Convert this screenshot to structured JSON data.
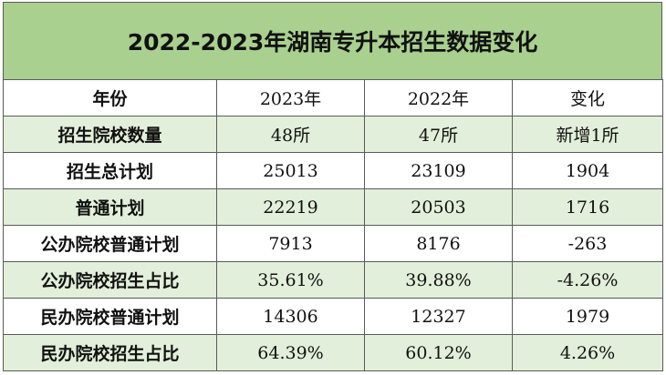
{
  "title": "2022-2023年湖南专升本招生数据变化",
  "header": {
    "label": "年份",
    "col_2023": "2023年",
    "col_2022": "2022年",
    "col_change": "变化"
  },
  "rows": [
    {
      "label": "招生院校数量",
      "v2023": "48所",
      "v2022": "47所",
      "change": "新增1所"
    },
    {
      "label": "招生总计划",
      "v2023": "25013",
      "v2022": "23109",
      "change": "1904"
    },
    {
      "label": "普通计划",
      "v2023": "22219",
      "v2022": "20503",
      "change": "1716"
    },
    {
      "label": "公办院校普通计划",
      "v2023": "7913",
      "v2022": "8176",
      "change": "-263"
    },
    {
      "label": "公办院校招生占比",
      "v2023": "35.61%",
      "v2022": "39.88%",
      "change": "-4.26%"
    },
    {
      "label": "民办院校普通计划",
      "v2023": "14306",
      "v2022": "12327",
      "change": "1979"
    },
    {
      "label": "民办院校招生占比",
      "v2023": "64.39%",
      "v2022": "60.12%",
      "change": "4.26%"
    }
  ],
  "colors": {
    "title_bg": "#a9d08e",
    "row_shade": "#e2efda",
    "row_plain": "#ffffff",
    "border": "#5a5a5a"
  }
}
